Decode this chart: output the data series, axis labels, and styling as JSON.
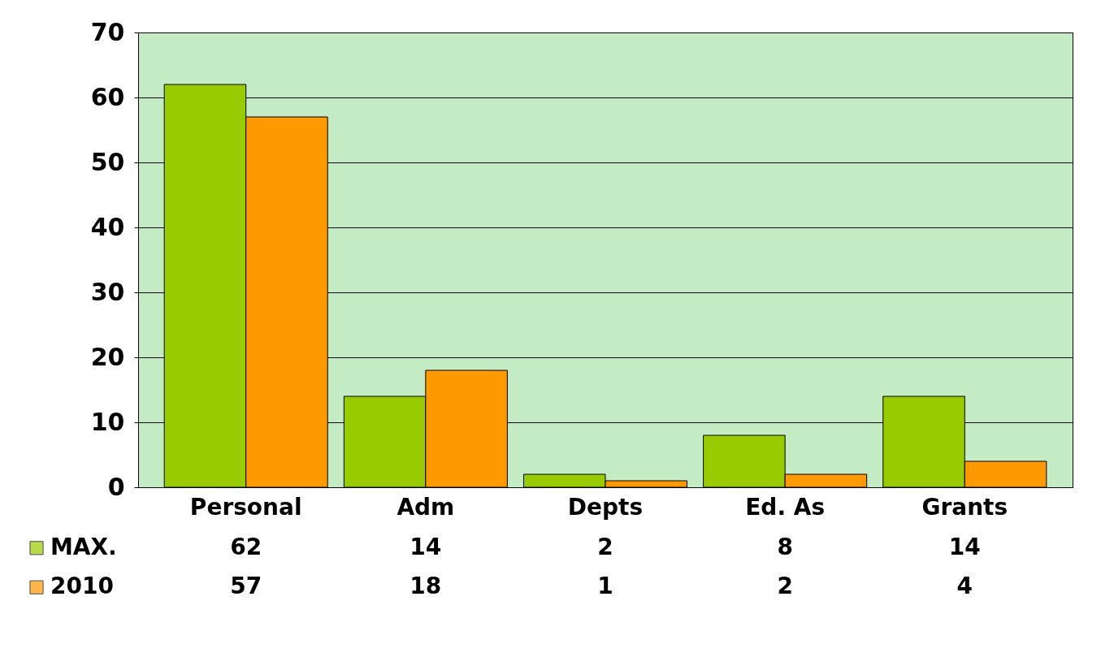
{
  "chart_data": {
    "type": "bar",
    "categories": [
      "Personal",
      "Adm",
      "Depts",
      "Ed. As",
      "Grants"
    ],
    "series": [
      {
        "name": "MAX.",
        "color": "#99cc00",
        "values": [
          62,
          14,
          2,
          8,
          14
        ]
      },
      {
        "name": "2010",
        "color": "#ff9900",
        "values": [
          57,
          18,
          1,
          2,
          4
        ]
      }
    ],
    "ylim": [
      0,
      70
    ],
    "yticks": [
      0,
      10,
      20,
      30,
      40,
      50,
      60,
      70
    ],
    "grid": "y",
    "legend": "bottom left",
    "data_labels": true
  }
}
